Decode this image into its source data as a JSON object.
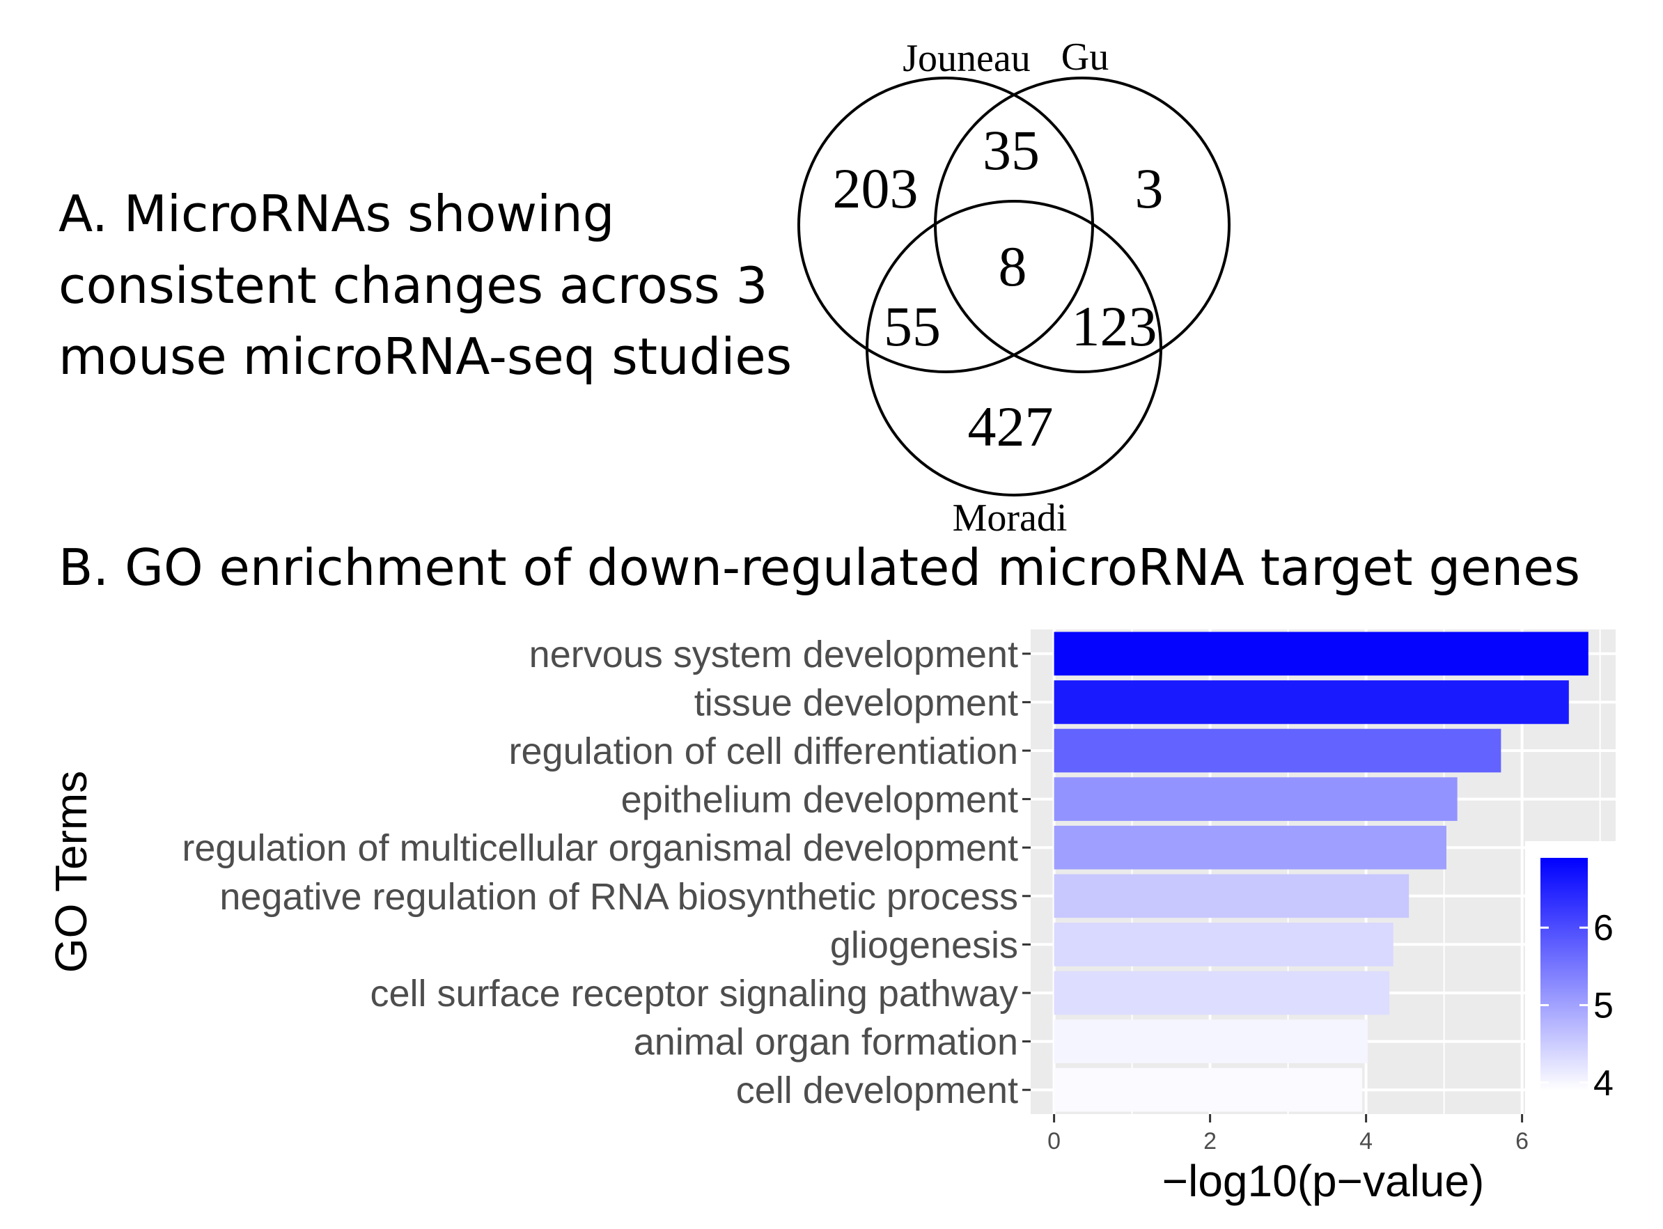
{
  "panel_a": {
    "heading_lines": [
      "A. MicroRNAs showing",
      "consistent changes across 3",
      "mouse microRNA-seq studies"
    ]
  },
  "panel_b": {
    "heading": "B. GO enrichment of down-regulated microRNA target genes"
  },
  "chart_data": [
    {
      "type": "venn",
      "sets": [
        "Jouneau",
        "Gu",
        "Moradi"
      ],
      "regions": [
        {
          "sets": [
            "Jouneau"
          ],
          "value": 203
        },
        {
          "sets": [
            "Gu"
          ],
          "value": 3
        },
        {
          "sets": [
            "Moradi"
          ],
          "value": 427
        },
        {
          "sets": [
            "Jouneau",
            "Gu"
          ],
          "value": 35
        },
        {
          "sets": [
            "Jouneau",
            "Moradi"
          ],
          "value": 55
        },
        {
          "sets": [
            "Gu",
            "Moradi"
          ],
          "value": 123
        },
        {
          "sets": [
            "Jouneau",
            "Gu",
            "Moradi"
          ],
          "value": 8
        }
      ]
    },
    {
      "type": "bar",
      "orientation": "horizontal",
      "categories": [
        "nervous system development",
        "tissue development",
        "regulation of cell differentiation",
        "epithelium development",
        "regulation of multicellular organismal development",
        "negative regulation of RNA biosynthetic process",
        "gliogenesis",
        "cell surface receptor signaling pathway",
        "animal organ formation",
        "cell development"
      ],
      "values": [
        6.85,
        6.6,
        5.73,
        5.17,
        5.03,
        4.55,
        4.35,
        4.3,
        4.02,
        3.95
      ],
      "xlabel": "−log10(p−value)",
      "ylabel": "GO Terms",
      "xlim": [
        -0.3,
        7.2
      ],
      "xticks": [
        0,
        2,
        4,
        6
      ],
      "grid": true,
      "legend": {
        "type": "colorbar",
        "placement": "right",
        "range": [
          3.9,
          6.9
        ],
        "ticks": [
          4,
          5,
          6
        ],
        "low_color": "#ffffff",
        "high_color": "#0000ff"
      }
    }
  ]
}
